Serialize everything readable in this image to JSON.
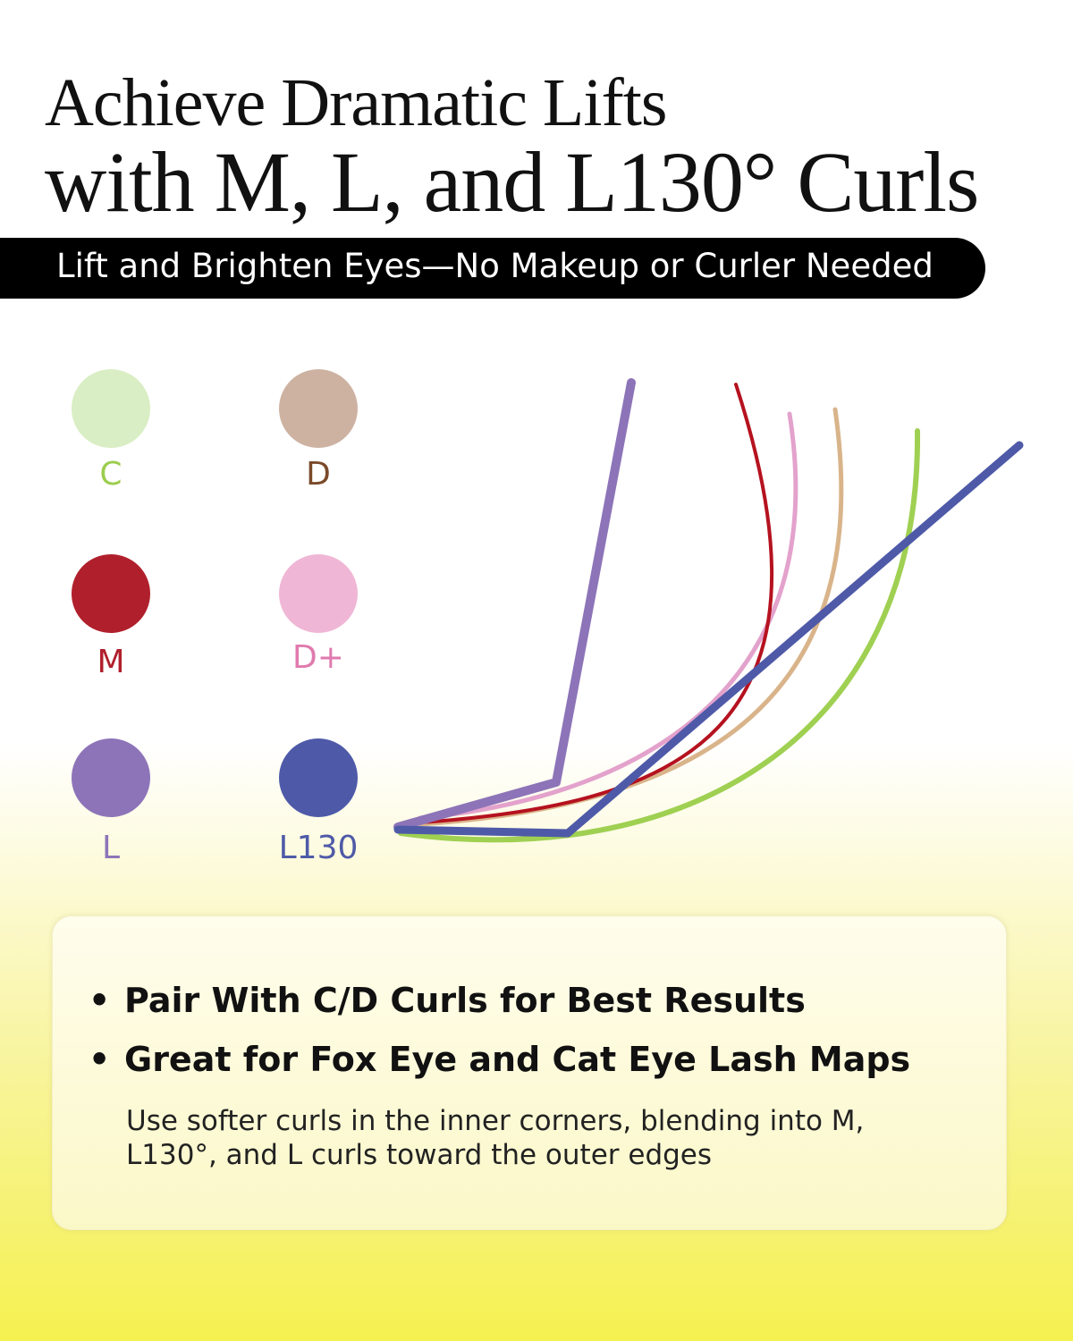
{
  "title": {
    "line1": "Achieve Dramatic Lifts",
    "line2": "with M, L, and L130° Curls"
  },
  "banner": "Lift and Brighten Eyes—No Makeup or Curler Needed",
  "legend": [
    {
      "label": "C",
      "color": "#d9eec4",
      "text_color": "#9ccd4e"
    },
    {
      "label": "D",
      "color": "#cdb2a2",
      "text_color": "#7a4a2a"
    },
    {
      "label": "M",
      "color": "#b0202c",
      "text_color": "#b0202c"
    },
    {
      "label": "D+",
      "color": "#f0b6d6",
      "text_color": "#e07aae"
    },
    {
      "label": "L",
      "color": "#8d74b8",
      "text_color": "#8d74b8"
    },
    {
      "label": "L130",
      "color": "#4e5aa8",
      "text_color": "#4e5aa8"
    }
  ],
  "curve_colors": {
    "C": "#9fd052",
    "D": "#d9b48a",
    "M": "#b5121f",
    "D+": "#e3a2cc",
    "L": "#8d74b8",
    "L130": "#4e5aa8"
  },
  "card": {
    "bullets": [
      "Pair With C/D Curls for Best Results",
      "Great for Fox Eye and Cat Eye Lash Maps"
    ],
    "bullet_marker": "•",
    "note": "Use softer curls in the inner corners, blending into M, L130°, and L curls toward the outer edges"
  }
}
